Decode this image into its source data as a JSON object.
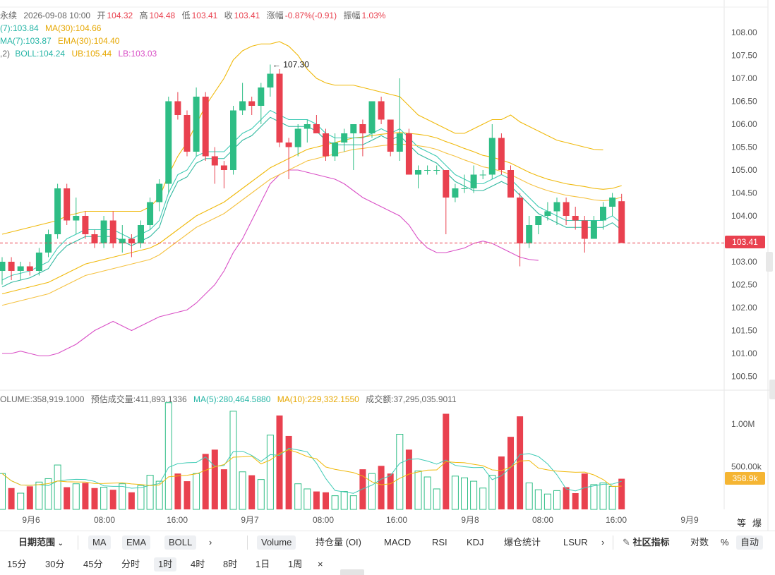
{
  "info": {
    "status": "永续",
    "datetime": "2026-09-08 10:00",
    "open_label": "开",
    "open": "104.32",
    "high_label": "高",
    "high": "104.48",
    "low_label": "低",
    "low": "103.41",
    "close_label": "收",
    "close": "103.41",
    "change_label": "涨幅",
    "change": "-0.87%(-0.91)",
    "amplitude_label": "振幅",
    "amplitude": "1.03%"
  },
  "legend": {
    "ma7": "(7):103.84",
    "ma30": "MA(30):104.66",
    "ema7": "MA(7):103.87",
    "ema30": "EMA(30):104.40",
    "boll_params": ",2)",
    "boll": "BOLL:104.24",
    "ub": "UB:105.44",
    "lb": "LB:103.03"
  },
  "volume_legend": {
    "volume": "OLUME:358,919.1000",
    "est": "预估成交量:411,893.1336",
    "ma5": "MA(5):280,464.5880",
    "ma10": "MA(10):229,332.1550",
    "turnover": "成交额:37,295,035.9011"
  },
  "colors": {
    "up": "#2ebd85",
    "down": "#e9414f",
    "ma_fast": "#3ecbb5",
    "ma_slow": "#f0b90b",
    "boll_lb": "#d94fc6"
  },
  "chart_data": {
    "type": "candlestick",
    "price_axis": [
      "108.00",
      "107.50",
      "107.00",
      "106.50",
      "106.00",
      "105.50",
      "105.00",
      "104.50",
      "104.00",
      "103.50",
      "103.00",
      "102.50",
      "102.00",
      "101.50",
      "101.00",
      "100.50"
    ],
    "volume_axis": [
      "1.00M",
      "500.00k"
    ],
    "time_axis": [
      "9月6",
      "08:00",
      "16:00",
      "9月7",
      "08:00",
      "16:00",
      "9月8",
      "08:00",
      "16:00",
      "9月9"
    ],
    "current_price": "103.41",
    "current_volume": "358.9k",
    "annotation_high": "107.30",
    "candles": [
      [
        102.8,
        103.1,
        102.5,
        103.0,
        420
      ],
      [
        103.0,
        103.1,
        102.6,
        102.8,
        250
      ],
      [
        102.8,
        103.0,
        102.6,
        102.9,
        190
      ],
      [
        102.9,
        103.0,
        102.7,
        102.8,
        270
      ],
      [
        102.8,
        103.3,
        102.7,
        103.2,
        320
      ],
      [
        103.2,
        103.7,
        103.1,
        103.6,
        360
      ],
      [
        103.6,
        104.7,
        103.5,
        104.6,
        520
      ],
      [
        104.6,
        104.7,
        103.8,
        103.9,
        260
      ],
      [
        103.9,
        104.4,
        103.6,
        104.0,
        300
      ],
      [
        104.0,
        104.1,
        103.5,
        103.6,
        310
      ],
      [
        103.6,
        103.7,
        103.3,
        103.4,
        250
      ],
      [
        103.4,
        104.0,
        103.3,
        103.9,
        260
      ],
      [
        103.9,
        104.1,
        103.3,
        103.4,
        230
      ],
      [
        103.4,
        103.8,
        103.2,
        103.5,
        300
      ],
      [
        103.5,
        103.6,
        103.1,
        103.4,
        200
      ],
      [
        103.4,
        103.9,
        103.3,
        103.8,
        280
      ],
      [
        103.8,
        104.4,
        103.7,
        104.3,
        400
      ],
      [
        104.3,
        104.8,
        104.1,
        104.7,
        330
      ],
      [
        104.7,
        106.6,
        104.5,
        106.5,
        1250
      ],
      [
        106.5,
        106.7,
        106.1,
        106.2,
        420
      ],
      [
        106.2,
        106.3,
        105.3,
        105.4,
        330
      ],
      [
        105.4,
        106.8,
        105.3,
        106.6,
        420
      ],
      [
        106.6,
        106.7,
        105.2,
        105.3,
        650
      ],
      [
        105.3,
        105.5,
        104.7,
        105.1,
        700
      ],
      [
        105.1,
        105.2,
        104.6,
        105.0,
        470
      ],
      [
        105.0,
        106.4,
        104.9,
        106.3,
        1150
      ],
      [
        106.3,
        106.9,
        106.2,
        106.5,
        440
      ],
      [
        106.5,
        106.6,
        106.2,
        106.4,
        400
      ],
      [
        106.4,
        106.9,
        106.0,
        106.8,
        350
      ],
      [
        106.8,
        107.3,
        106.6,
        107.1,
        870
      ],
      [
        107.1,
        107.2,
        105.5,
        105.6,
        1100
      ],
      [
        105.6,
        105.7,
        104.8,
        105.5,
        860
      ],
      [
        105.5,
        106.0,
        105.3,
        105.9,
        300
      ],
      [
        105.9,
        106.1,
        105.6,
        106.0,
        240
      ],
      [
        106.0,
        106.2,
        105.8,
        105.8,
        210
      ],
      [
        105.8,
        105.9,
        105.2,
        105.3,
        200
      ],
      [
        105.3,
        105.8,
        105.2,
        105.6,
        160
      ],
      [
        105.6,
        105.9,
        105.4,
        105.8,
        210
      ],
      [
        105.8,
        106.0,
        105.0,
        106.0,
        160
      ],
      [
        106.0,
        106.1,
        105.3,
        105.8,
        470
      ],
      [
        105.8,
        106.5,
        105.7,
        106.5,
        420
      ],
      [
        106.5,
        106.6,
        106.0,
        106.1,
        510
      ],
      [
        106.1,
        106.1,
        105.3,
        105.4,
        420
      ],
      [
        105.4,
        107.0,
        105.2,
        105.8,
        880
      ],
      [
        105.8,
        105.9,
        104.9,
        104.9,
        700
      ],
      [
        104.9,
        105.1,
        104.6,
        105.0,
        450
      ],
      [
        105.0,
        105.1,
        104.9,
        105.0,
        380
      ],
      [
        105.0,
        105.1,
        104.9,
        105.0,
        240
      ],
      [
        105.0,
        105.0,
        103.6,
        104.4,
        1120
      ],
      [
        104.4,
        104.7,
        104.3,
        104.6,
        390
      ],
      [
        104.6,
        104.9,
        104.5,
        104.6,
        370
      ],
      [
        104.6,
        105.1,
        104.5,
        104.9,
        330
      ],
      [
        104.9,
        105.0,
        104.8,
        104.9,
        250
      ],
      [
        104.9,
        106.0,
        104.8,
        105.7,
        400
      ],
      [
        105.7,
        105.8,
        104.9,
        105.0,
        620
      ],
      [
        105.0,
        105.1,
        104.4,
        104.4,
        850
      ],
      [
        104.4,
        104.5,
        102.9,
        103.4,
        1090
      ],
      [
        103.4,
        104.0,
        103.3,
        103.8,
        310
      ],
      [
        103.8,
        104.0,
        103.6,
        104.0,
        230
      ],
      [
        104.0,
        104.3,
        103.9,
        104.1,
        180
      ],
      [
        104.1,
        104.4,
        103.8,
        104.3,
        220
      ],
      [
        104.3,
        104.4,
        103.8,
        104.0,
        260
      ],
      [
        104.0,
        104.2,
        103.7,
        103.9,
        190
      ],
      [
        103.9,
        104.0,
        103.2,
        103.5,
        420
      ],
      [
        103.5,
        104.0,
        103.5,
        103.9,
        290
      ],
      [
        103.9,
        104.3,
        103.7,
        104.2,
        310
      ],
      [
        104.2,
        104.5,
        104.0,
        104.4,
        270
      ],
      [
        104.32,
        104.48,
        103.41,
        103.41,
        359
      ]
    ],
    "ma_fast": [
      102.6,
      102.7,
      102.75,
      102.8,
      102.9,
      103.0,
      103.3,
      103.5,
      103.6,
      103.7,
      103.7,
      103.7,
      103.7,
      103.6,
      103.5,
      103.6,
      103.7,
      103.9,
      104.5,
      104.9,
      105.0,
      105.3,
      105.4,
      105.4,
      105.4,
      105.6,
      105.8,
      105.9,
      106.1,
      106.3,
      106.2,
      106.1,
      106.1,
      106.1,
      106.0,
      105.8,
      105.7,
      105.7,
      105.7,
      105.7,
      105.8,
      105.9,
      105.8,
      105.9,
      105.7,
      105.5,
      105.4,
      105.3,
      105.1,
      104.9,
      104.8,
      104.7,
      104.7,
      104.8,
      104.9,
      104.8,
      104.6,
      104.4,
      104.2,
      104.1,
      104.0,
      103.9,
      103.9,
      103.9,
      103.9,
      103.9,
      104.0,
      103.84
    ],
    "ma_slow": [
      102.3,
      102.35,
      102.4,
      102.45,
      102.5,
      102.55,
      102.65,
      102.75,
      102.85,
      102.95,
      103.0,
      103.05,
      103.1,
      103.15,
      103.2,
      103.25,
      103.3,
      103.4,
      103.55,
      103.7,
      103.85,
      104.0,
      104.1,
      104.2,
      104.3,
      104.45,
      104.6,
      104.75,
      104.9,
      105.05,
      105.15,
      105.25,
      105.35,
      105.45,
      105.5,
      105.55,
      105.6,
      105.65,
      105.7,
      105.72,
      105.75,
      105.78,
      105.8,
      105.82,
      105.8,
      105.78,
      105.75,
      105.7,
      105.62,
      105.55,
      105.47,
      105.4,
      105.32,
      105.28,
      105.22,
      105.15,
      105.05,
      104.95,
      104.87,
      104.8,
      104.75,
      104.7,
      104.67,
      104.64,
      104.6,
      104.58,
      104.6,
      104.66
    ],
    "boll_ub": [
      103.6,
      103.65,
      103.7,
      103.75,
      103.8,
      103.85,
      103.9,
      104.0,
      104.05,
      104.1,
      104.1,
      104.1,
      104.1,
      104.1,
      104.1,
      104.1,
      104.2,
      104.4,
      104.9,
      105.3,
      105.6,
      106.0,
      106.4,
      106.7,
      107.0,
      107.4,
      107.6,
      107.7,
      107.75,
      107.75,
      107.8,
      107.7,
      107.5,
      107.2,
      107.0,
      106.9,
      106.85,
      106.85,
      106.85,
      106.8,
      106.75,
      106.7,
      106.65,
      106.6,
      106.4,
      106.2,
      106.1,
      106.0,
      105.9,
      105.8,
      105.8,
      105.9,
      106.0,
      106.1,
      106.1,
      106.2,
      106.05,
      105.95,
      105.85,
      105.75,
      105.65,
      105.6,
      105.55,
      105.5,
      105.45,
      105.44
    ],
    "boll_lb": [
      101.0,
      101.0,
      101.05,
      101.0,
      100.95,
      100.95,
      101.0,
      101.1,
      101.2,
      101.35,
      101.5,
      101.6,
      101.7,
      101.6,
      101.5,
      101.6,
      101.7,
      101.8,
      101.85,
      101.9,
      101.95,
      102.1,
      102.3,
      102.5,
      102.8,
      103.2,
      103.5,
      103.9,
      104.3,
      104.7,
      104.9,
      105.0,
      105.0,
      104.95,
      104.9,
      104.85,
      104.8,
      104.7,
      104.55,
      104.4,
      104.3,
      104.2,
      104.1,
      104.0,
      103.8,
      103.5,
      103.3,
      103.2,
      103.2,
      103.25,
      103.3,
      103.4,
      103.45,
      103.4,
      103.3,
      103.2,
      103.1,
      103.05,
      103.03
    ]
  },
  "toolbar": {
    "date_range": "日期范围",
    "indicators": [
      "MA",
      "EMA",
      "BOLL"
    ],
    "more": "›",
    "sub_indicators": [
      "Volume",
      "持仓量 (OI)",
      "MACD",
      "RSI",
      "KDJ",
      "爆仓统计",
      "LSUR"
    ],
    "community": "社区指标",
    "log": "对数",
    "percent": "%",
    "auto": "自动",
    "intervals": [
      "15分",
      "30分",
      "45分",
      "分时",
      "1时",
      "4时",
      "8时",
      "1日",
      "1周"
    ],
    "selected_interval": "1时",
    "close": "×"
  },
  "right_labels": [
    "等",
    "爆"
  ]
}
